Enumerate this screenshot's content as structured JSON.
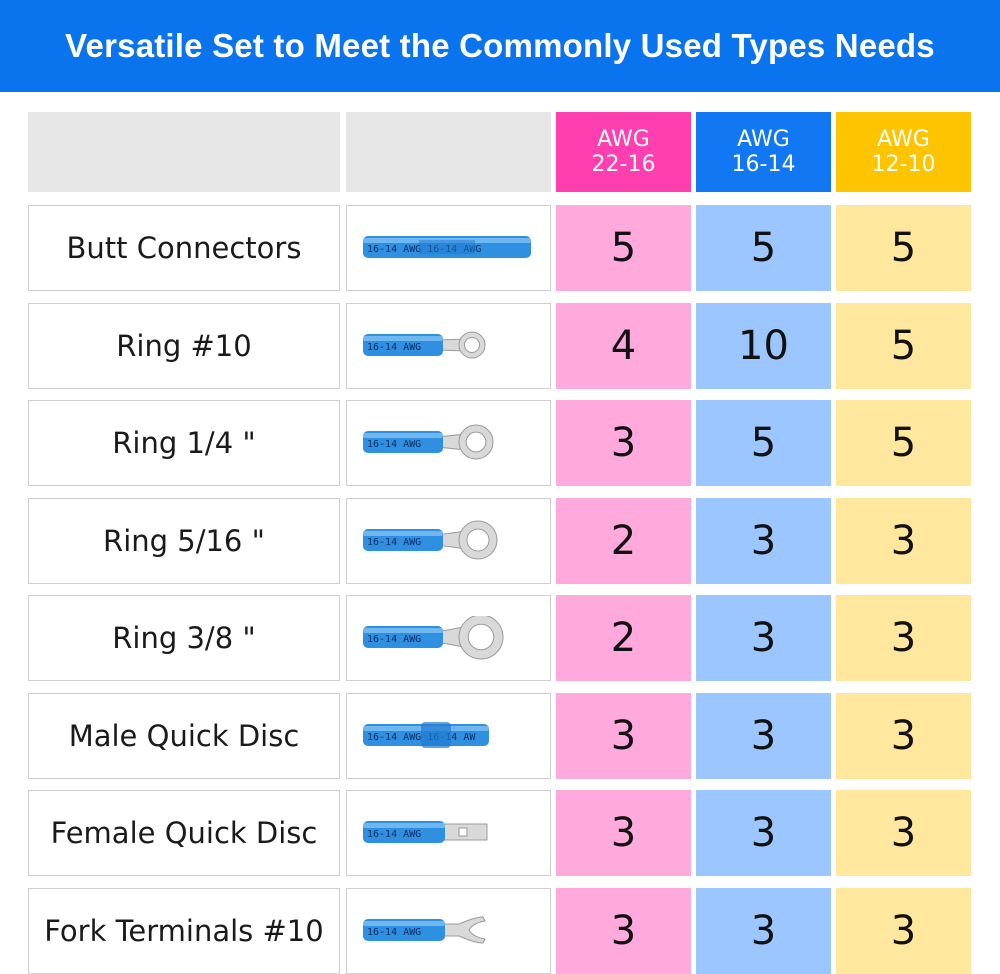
{
  "banner": {
    "title": "Versatile Set to Meet the Commonly Used Types Needs"
  },
  "colors": {
    "banner": "#0a74ee",
    "pink_header": "#ff3fb0",
    "blue_header": "#1177f2",
    "yellow_header": "#ffc400",
    "pink_cell": "#ffa9dd",
    "blue_cell": "#9cc6ff",
    "yellow_cell": "#ffe79e",
    "sleeve_blue": "#2f8fe0"
  },
  "columns": [
    {
      "line1": "AWG",
      "line2": "22-16"
    },
    {
      "line1": "AWG",
      "line2": "16-14"
    },
    {
      "line1": "AWG",
      "line2": "12-10"
    }
  ],
  "rows": [
    {
      "name": "Butt Connectors",
      "icon": "butt-connector-icon",
      "values": [
        "5",
        "5",
        "5"
      ]
    },
    {
      "name": "Ring #10",
      "icon": "ring-terminal-icon",
      "values": [
        "4",
        "10",
        "5"
      ]
    },
    {
      "name": "Ring 1/4 \"",
      "icon": "ring-terminal-icon",
      "values": [
        "3",
        "5",
        "5"
      ]
    },
    {
      "name": "Ring 5/16 \"",
      "icon": "ring-terminal-icon",
      "values": [
        "2",
        "3",
        "3"
      ]
    },
    {
      "name": "Ring 3/8 \"",
      "icon": "ring-terminal-icon",
      "values": [
        "2",
        "3",
        "3"
      ]
    },
    {
      "name": "Male Quick Disc",
      "icon": "male-quick-disconnect-icon",
      "values": [
        "3",
        "3",
        "3"
      ]
    },
    {
      "name": "Female Quick Disc",
      "icon": "female-quick-disconnect-icon",
      "values": [
        "3",
        "3",
        "3"
      ]
    },
    {
      "name": "Fork Terminals #10",
      "icon": "fork-terminal-icon",
      "values": [
        "3",
        "3",
        "3"
      ]
    }
  ],
  "sleeve_print": {
    "butt": "16-14 AWG 16-14 AWG",
    "ring": "16-14 AWG",
    "male": "16-14 AWG 16-14 AW",
    "female": "16-14 AWG",
    "fork": "16-14 AWG"
  }
}
